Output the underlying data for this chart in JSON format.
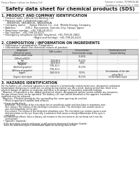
{
  "header_left": "Product Name: Lithium Ion Battery Cell",
  "header_right": "Substance number: FS70SM-06-A8\nEstablished / Revision: Dec.1 2016",
  "title": "Safety data sheet for chemical products (SDS)",
  "section1_title": "1. PRODUCT AND COMPANY IDENTIFICATION",
  "section1_lines": [
    "  • Product name: Lithium Ion Battery Cell",
    "  • Product code: Cylindrical-type cell",
    "       SN168550, SN168550L, SN168550A",
    "  • Company name:     Sanyo Electric Co., Ltd.  Mobile Energy Company",
    "  • Address:            200-1  Kannondori, Sumoto-City, Hyogo, Japan",
    "  • Telephone number:  +81-799-26-4111",
    "  • Fax number:  +81-799-26-4121",
    "  • Emergency telephone number (daytime): +81-799-26-2862",
    "                                         (Night and holiday): +81-799-26-4121"
  ],
  "section2_title": "2. COMPOSITION / INFORMATION ON INGREDIENTS",
  "section2_intro": "  • Substance or preparation: Preparation",
  "section2_sub": "  • Information about the chemical nature of product:",
  "table_headers": [
    "Component\n(Chemical name)",
    "CAS number",
    "Concentration /\nConcentration range",
    "Classification and\nhazard labeling"
  ],
  "table_rows": [
    [
      "Lithium cobalt oxide\n(LiMnxCoxNiO2)",
      "-",
      "30-60%",
      "-"
    ],
    [
      "Iron",
      "7439-89-6",
      "10-25%",
      "-"
    ],
    [
      "Aluminum",
      "7429-90-5",
      "2-6%",
      "-"
    ],
    [
      "Graphite\n(Artificial graphite)\n(All form of graphite)",
      "7782-42-5\n7782-43-2",
      "10-20%",
      "-"
    ],
    [
      "Copper",
      "7440-50-8",
      "5-15%",
      "Sensitization of the skin\ngroup No.2"
    ],
    [
      "Organic electrolyte",
      "-",
      "10-20%",
      "Inflammable liquid"
    ]
  ],
  "section3_title": "3. HAZARDS IDENTIFICATION",
  "section3_para1": [
    "For the battery cell, chemical substances are stored in a hermetically sealed metal case, designed to withstand",
    "temperature and pressure conditions occurring during normal use. As a result, during normal use, there is no",
    "physical danger of ignition or explosion and there is no danger of hazardous materials leakage.",
    "  However, if exposed to a fire, added mechanical shocks, decomposed, written seems without any measures,",
    "the gas release vent can be operated. The battery cell case will be breached or fire appears, hazardous",
    "materials may be released.",
    "  Moreover, if heated strongly by the surrounding fire, some gas may be emitted."
  ],
  "section3_sub1": "  • Most important hazard and effects:",
  "section3_sub1_lines": [
    "    Human health effects:",
    "      Inhalation: The release of the electrolyte has an anesthesia action and stimulates in respiratory tract.",
    "      Skin contact: The release of the electrolyte stimulates a skin. The electrolyte skin contact causes a",
    "      sore and stimulation on the skin.",
    "      Eye contact: The release of the electrolyte stimulates eyes. The electrolyte eye contact causes a sore",
    "      and stimulation on the eye. Especially, a substance that causes a strong inflammation of the eyes is",
    "      contained.",
    "    Environmental effects: Since a battery cell remains in the environment, do not throw out it into the",
    "      environment."
  ],
  "section3_sub2": "  • Specific hazards:",
  "section3_sub2_lines": [
    "    If the electrolyte contacts with water, it will generate detrimental hydrogen fluoride.",
    "    Since the lead electrolyte is inflammable liquid, do not bring close to fire."
  ],
  "bg_color": "#ffffff",
  "text_color": "#1a1a1a",
  "table_header_bg": "#cccccc",
  "line_color": "#888888"
}
